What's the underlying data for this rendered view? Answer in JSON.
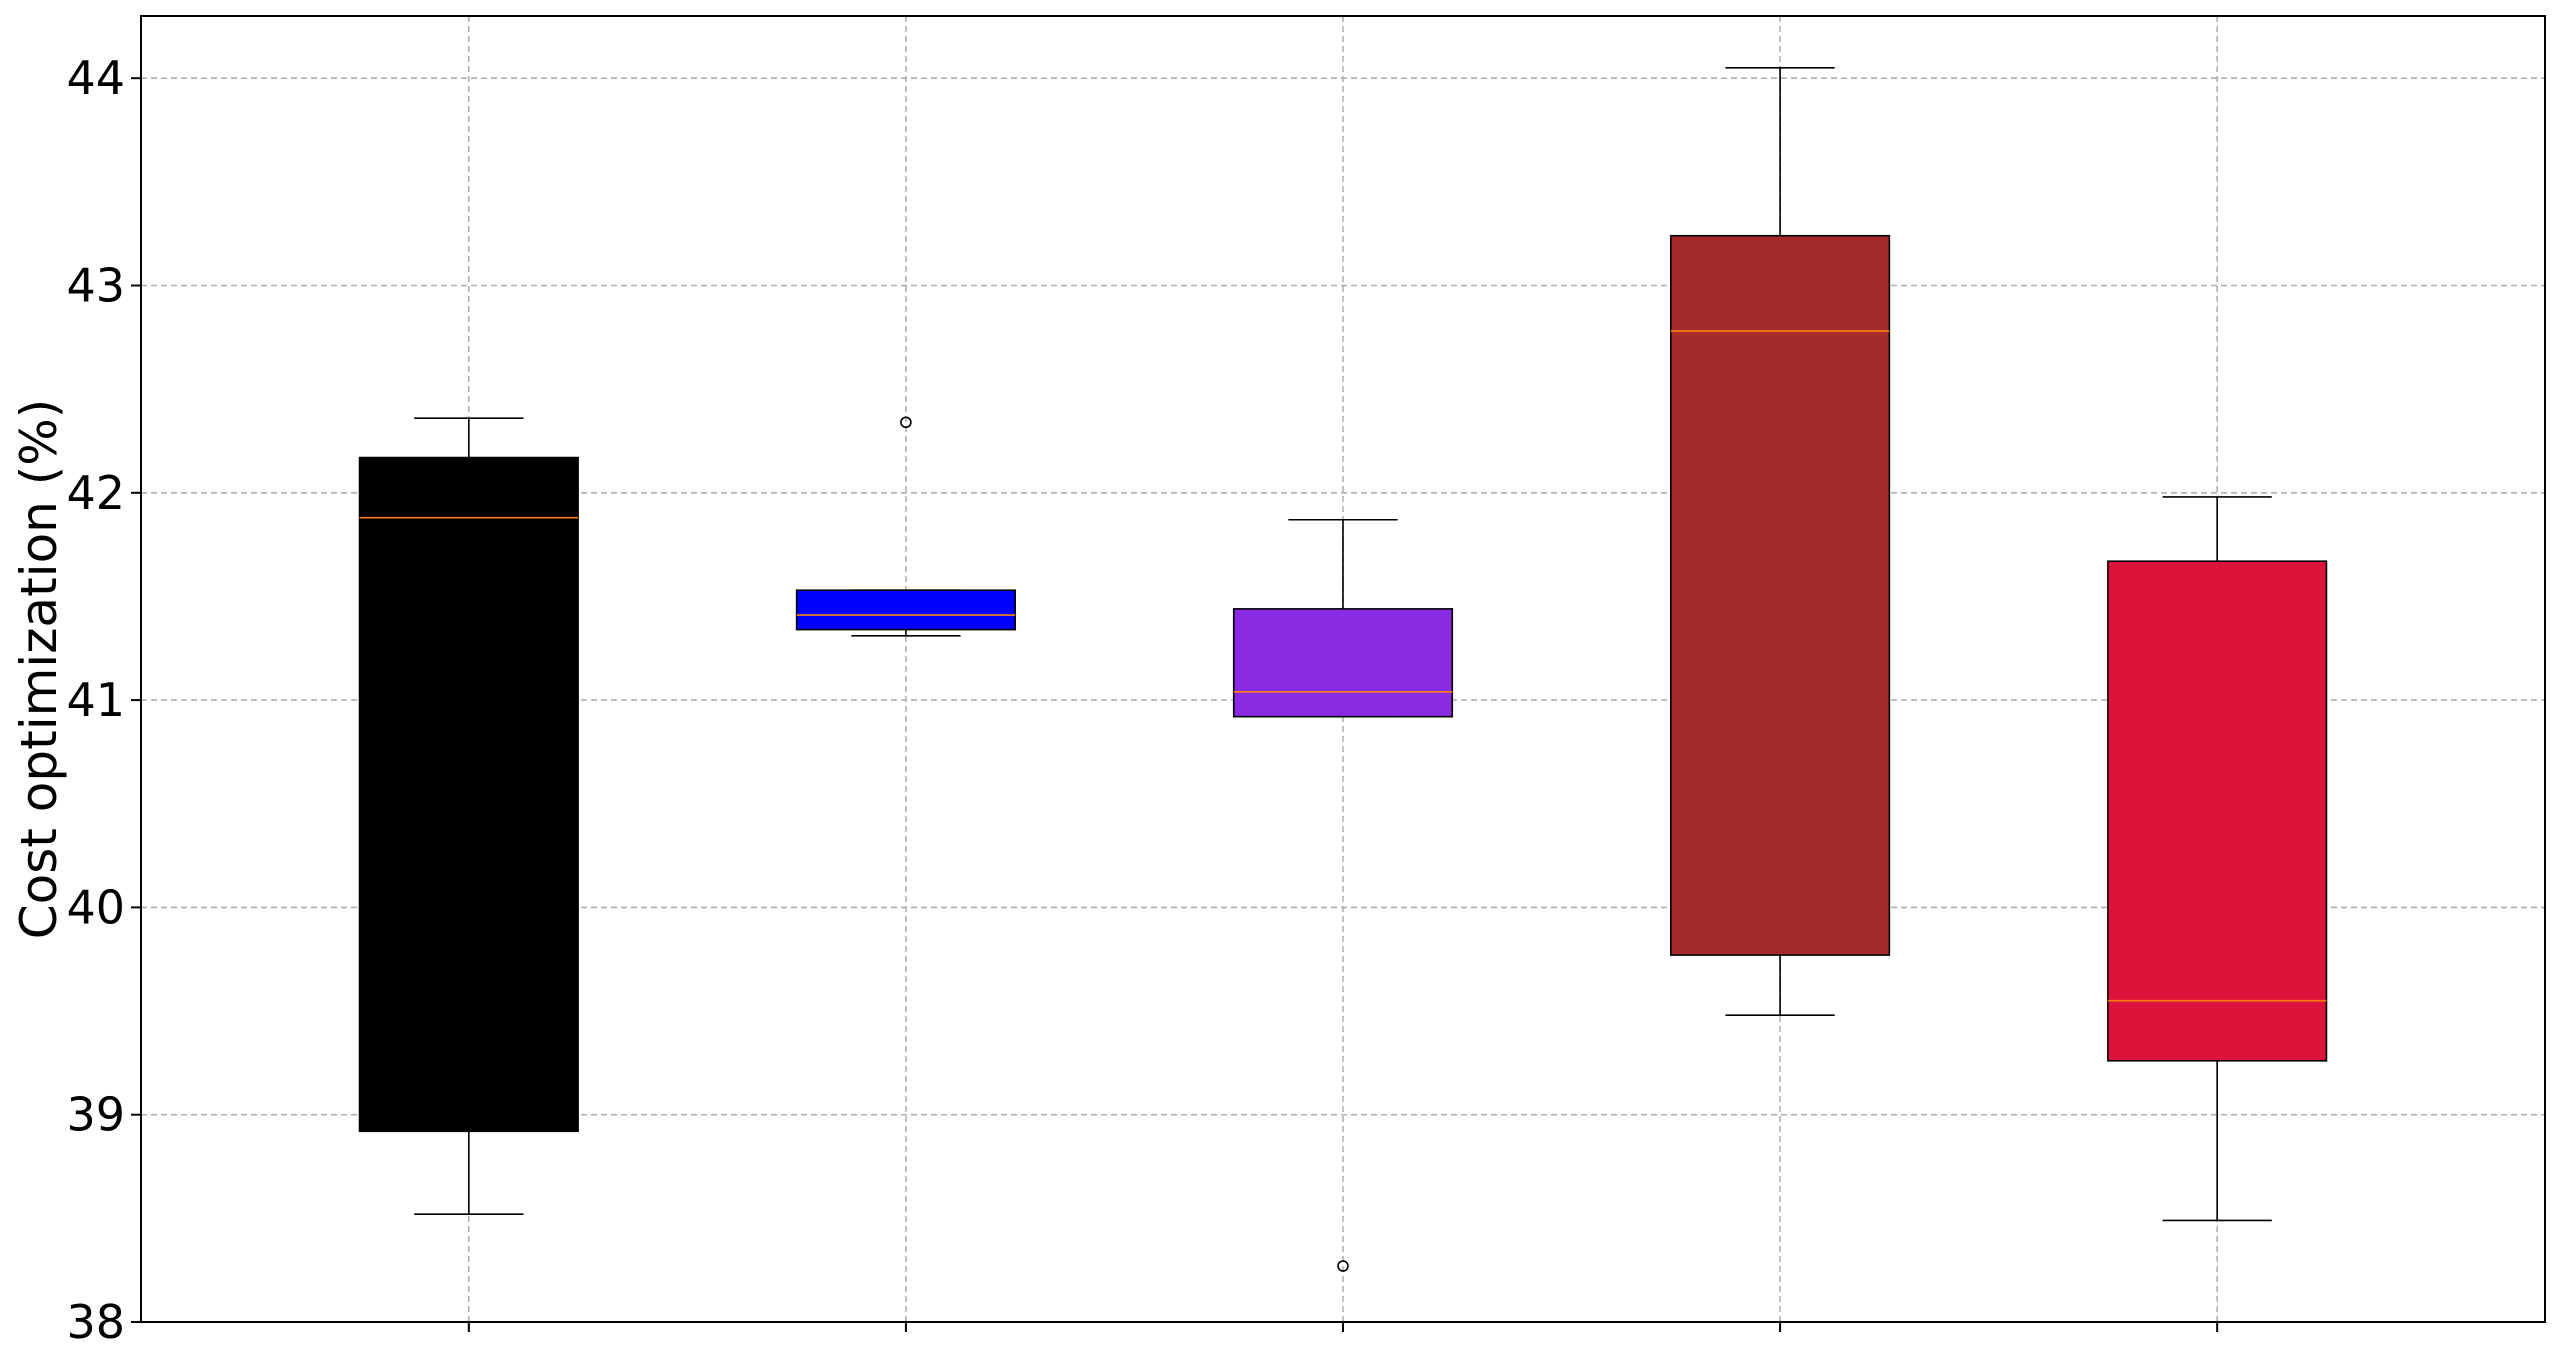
{
  "chart_data": {
    "type": "box",
    "title": "",
    "xlabel": "",
    "ylabel": "Cost optimization (%)",
    "ylim": [
      38,
      44.3
    ],
    "yticks": [
      38,
      39,
      40,
      41,
      42,
      43,
      44
    ],
    "grid": true,
    "legend": "none",
    "categories": [
      "",
      "",
      "",
      "",
      ""
    ],
    "boxes": [
      {
        "color": "#000000",
        "whisker_low": 38.52,
        "q1": 38.92,
        "median": 41.88,
        "q3": 42.17,
        "whisker_high": 42.36,
        "outliers": []
      },
      {
        "color": "#0000ff",
        "whisker_low": 41.31,
        "q1": 41.34,
        "median": 41.41,
        "q3": 41.53,
        "whisker_high": 41.53,
        "outliers": [
          42.34
        ]
      },
      {
        "color": "#8a2be2",
        "whisker_low": 40.92,
        "q1": 40.92,
        "median": 41.04,
        "q3": 41.44,
        "whisker_high": 41.87,
        "outliers": [
          38.27
        ]
      },
      {
        "color": "#a52a2a",
        "whisker_low": 39.48,
        "q1": 39.77,
        "median": 42.78,
        "q3": 43.24,
        "whisker_high": 44.05,
        "outliers": []
      },
      {
        "color": "#dc143c",
        "whisker_low": 38.49,
        "q1": 39.26,
        "median": 39.55,
        "q3": 41.67,
        "whisker_high": 41.98,
        "outliers": []
      }
    ],
    "median_color": "#ff7f0e"
  }
}
